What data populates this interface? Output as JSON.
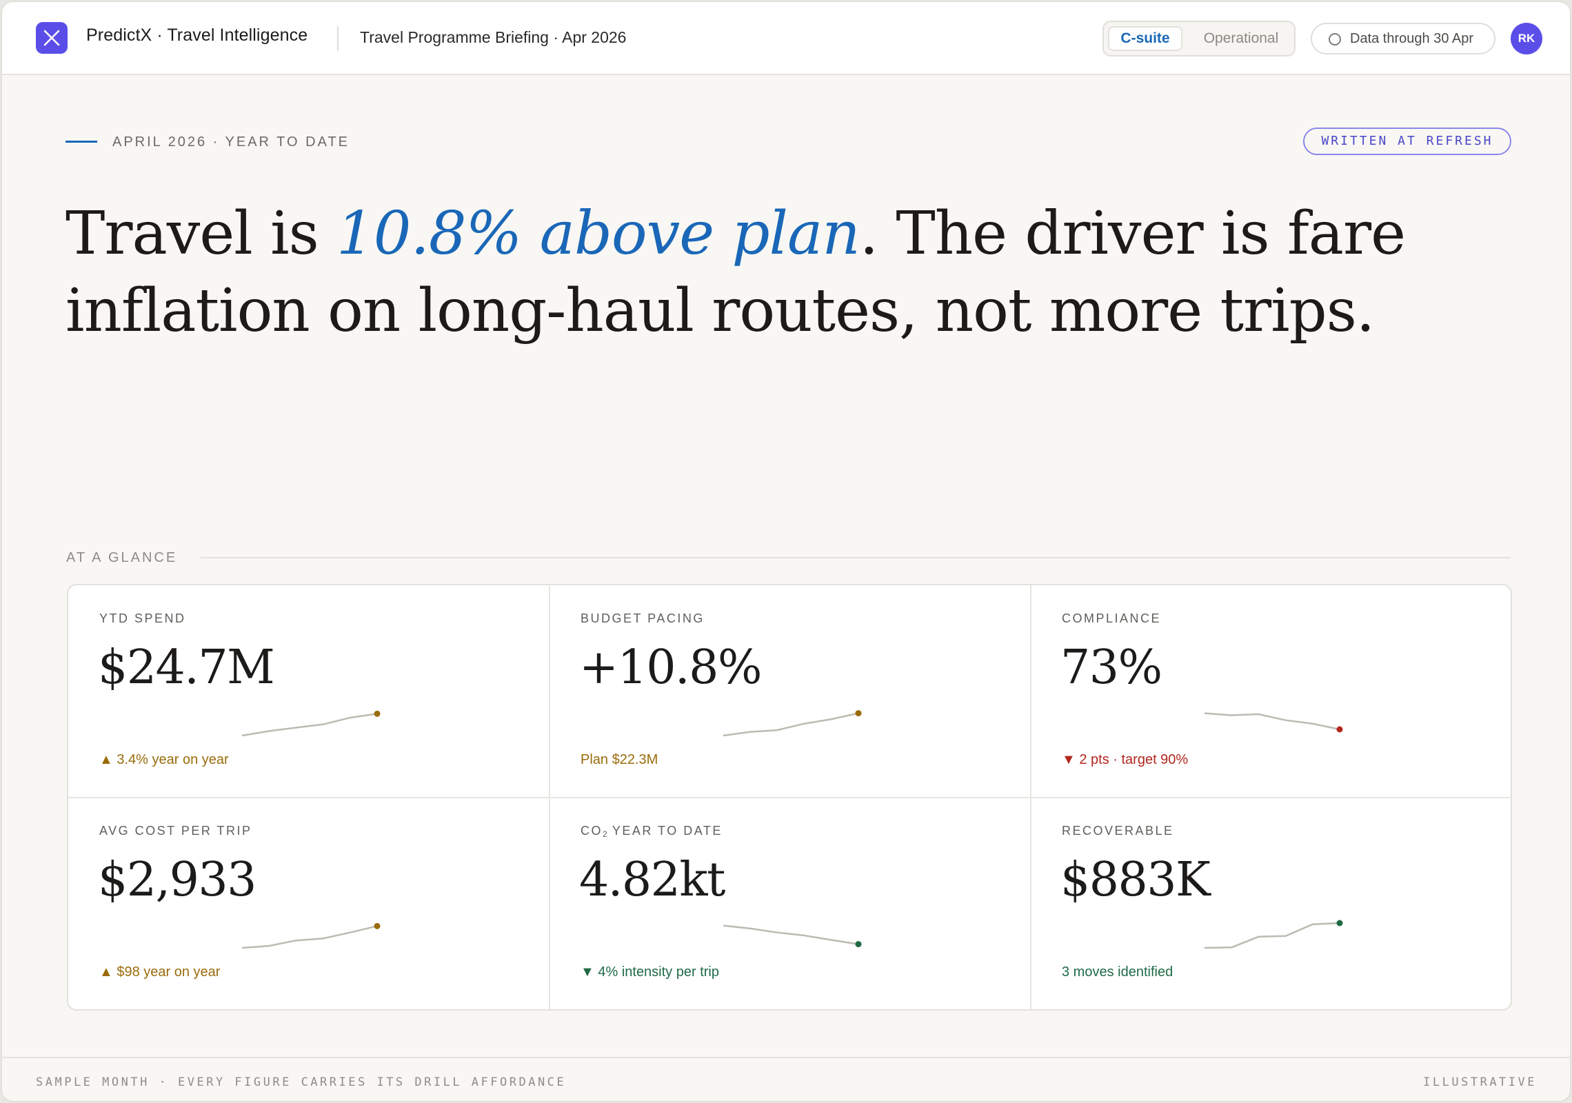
{
  "header": {
    "brand": "PredictX · Travel Intelligence",
    "briefing_title": "Travel Programme Briefing · Apr 2026",
    "view_toggle": {
      "active": "C-suite",
      "inactive": "Operational"
    },
    "data_through": "Data through 30 Apr",
    "avatar_initials": "RK"
  },
  "hero": {
    "kicker": "APRIL 2026 · YEAR TO DATE",
    "badge": "WRITTEN AT REFRESH",
    "headline_pre": "Travel is ",
    "headline_highlight": "10.8% above plan",
    "headline_post": ". The driver is fare inflation on long-haul routes, not more trips."
  },
  "glance": {
    "section_label": "AT A GLANCE",
    "cards": [
      {
        "label": "YTD SPEND",
        "value": "$24.7M",
        "delta": "▲ 3.4% year on year",
        "tone": "amber",
        "spark": [
          0,
          0.18,
          0.32,
          0.45,
          0.72,
          0.88
        ],
        "spark_color": "#9a6b0a"
      },
      {
        "label": "BUDGET PACING",
        "value": "+10.8%",
        "delta": "Plan $22.3M",
        "tone": "amber",
        "spark": [
          0,
          0.15,
          0.22,
          0.48,
          0.66,
          0.9
        ],
        "spark_color": "#9a6b0a"
      },
      {
        "label": "COMPLIANCE",
        "value": "73%",
        "delta": "▼ 2 pts · target 90%",
        "tone": "red",
        "spark": [
          0.9,
          0.82,
          0.86,
          0.62,
          0.48,
          0.25
        ],
        "spark_color": "#b3261e"
      },
      {
        "label": "AVG COST PER TRIP",
        "value": "$2,933",
        "delta": "▲ $98 year on year",
        "tone": "amber",
        "spark": [
          0,
          0.08,
          0.3,
          0.38,
          0.62,
          0.88
        ],
        "spark_color": "#9a6b0a"
      },
      {
        "label_pre": "CO",
        "label_sub": "2",
        "label_post": " YEAR TO DATE",
        "value": "4.82kt",
        "delta": "▼ 4% intensity per trip",
        "tone": "green",
        "spark": [
          0.9,
          0.78,
          0.62,
          0.5,
          0.32,
          0.15
        ],
        "spark_color": "#1f6a45"
      },
      {
        "label": "RECOVERABLE",
        "value": "$883K",
        "delta": "3 moves identified",
        "tone": "green",
        "spark": [
          0,
          0.02,
          0.45,
          0.48,
          0.95,
          1.0
        ],
        "spark_color": "#1f6a45"
      }
    ]
  },
  "footer": {
    "left": "SAMPLE MONTH · EVERY FIGURE CARRIES ITS DRILL AFFORDANCE",
    "right": "ILLUSTRATIVE"
  }
}
